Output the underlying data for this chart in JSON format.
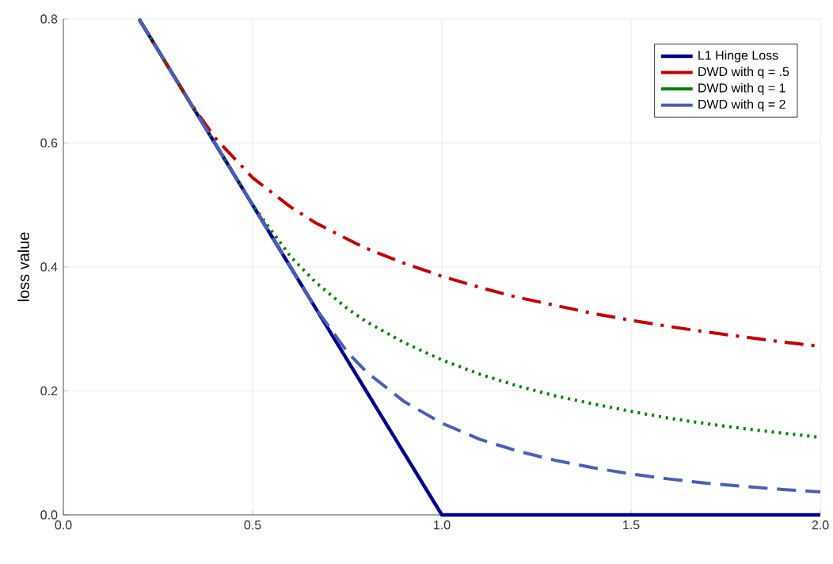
{
  "chart_data": {
    "type": "line",
    "ylabel": "loss value",
    "xlim": [
      0,
      2
    ],
    "ylim": [
      0,
      0.8
    ],
    "xticks": [
      {
        "value": 0,
        "label": "0.0"
      },
      {
        "value": 0.5,
        "label": "0.5"
      },
      {
        "value": 1,
        "label": "1.0"
      },
      {
        "value": 1.5,
        "label": "1.5"
      },
      {
        "value": 2,
        "label": "2.0"
      }
    ],
    "yticks": [
      {
        "value": 0,
        "label": "0.0"
      },
      {
        "value": 0.2,
        "label": "0.2"
      },
      {
        "value": 0.4,
        "label": "0.4"
      },
      {
        "value": 0.6,
        "label": "0.6"
      },
      {
        "value": 0.8,
        "label": "0.8"
      }
    ],
    "grid": true,
    "legend": "top right",
    "x": [
      0.2,
      0.25,
      0.3,
      0.333,
      0.4,
      0.5,
      0.6,
      0.667,
      0.75,
      0.8,
      0.9,
      1.0,
      1.1,
      1.2,
      1.3,
      1.4,
      1.5,
      1.6,
      1.7,
      1.8,
      1.9,
      2.0
    ],
    "series": [
      {
        "name": "L1 Hinge Loss",
        "color": "#00008b",
        "line_style": "solid",
        "values": [
          0.8,
          0.75,
          0.7,
          0.667,
          0.6,
          0.5,
          0.4,
          0.333,
          0.25,
          0.2,
          0.1,
          0,
          0,
          0,
          0,
          0,
          0,
          0,
          0,
          0,
          0,
          0
        ]
      },
      {
        "name": "DWD with q = .5",
        "color": "#c00000",
        "line_style": "dashdot",
        "values": [
          0.8,
          0.75,
          0.7,
          0.667,
          0.609,
          0.544,
          0.497,
          0.471,
          0.445,
          0.43,
          0.406,
          0.385,
          0.367,
          0.351,
          0.338,
          0.325,
          0.314,
          0.304,
          0.295,
          0.287,
          0.279,
          0.272
        ]
      },
      {
        "name": "DWD with q = 1",
        "color": "#008000",
        "line_style": "dotted",
        "values": [
          0.8,
          0.75,
          0.7,
          0.667,
          0.6,
          0.5,
          0.417,
          0.375,
          0.333,
          0.312,
          0.278,
          0.25,
          0.227,
          0.208,
          0.192,
          0.179,
          0.167,
          0.156,
          0.147,
          0.139,
          0.132,
          0.125
        ]
      },
      {
        "name": "DWD with q = 2",
        "color": "#4a5fb5",
        "line_style": "dashed",
        "values": [
          0.8,
          0.75,
          0.7,
          0.667,
          0.6,
          0.5,
          0.4,
          0.333,
          0.263,
          0.231,
          0.183,
          0.148,
          0.122,
          0.103,
          0.088,
          0.076,
          0.066,
          0.058,
          0.051,
          0.046,
          0.041,
          0.037
        ]
      }
    ]
  }
}
